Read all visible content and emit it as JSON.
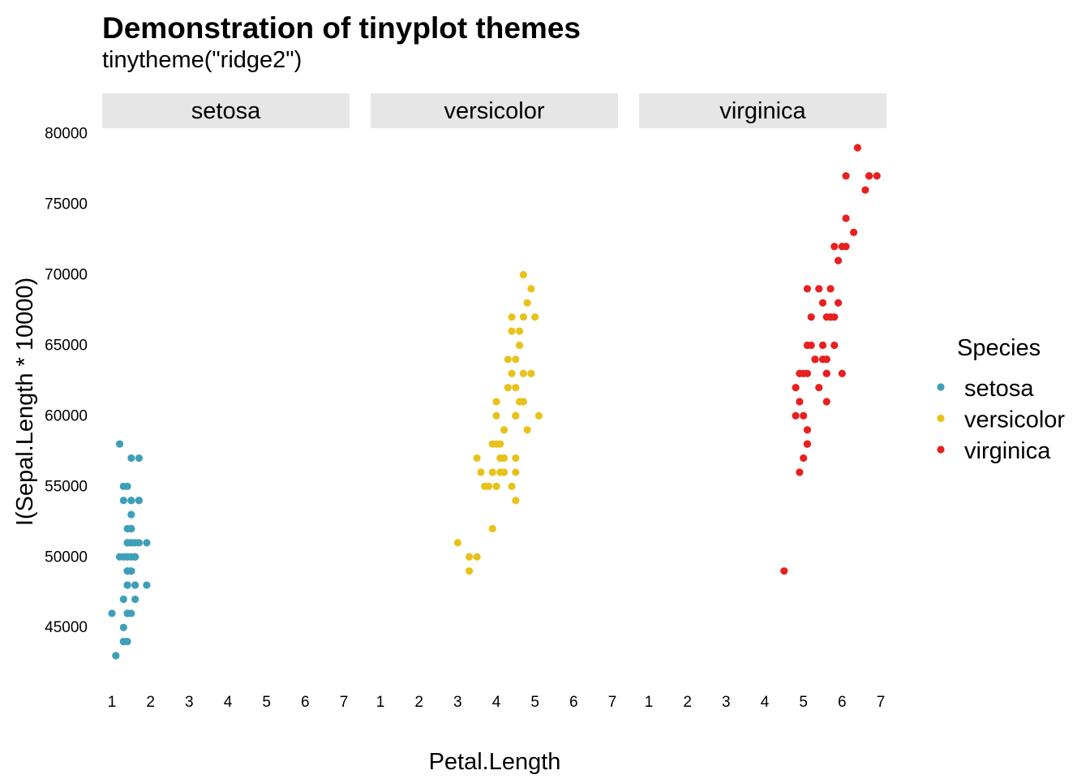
{
  "chart_data": {
    "type": "scatter",
    "title": "Demonstration of tinyplot themes",
    "subtitle": "tinytheme(\"ridge2\")",
    "xlabel": "Petal.Length",
    "ylabel": "I(Sepal.Length * 10000)",
    "facet_by": "Species",
    "facets": [
      "setosa",
      "versicolor",
      "virginica"
    ],
    "xlim": [
      1,
      7
    ],
    "ylim": [
      43000,
      79000
    ],
    "x_ticks": [
      1,
      2,
      3,
      4,
      5,
      6,
      7
    ],
    "y_ticks": [
      45000,
      50000,
      55000,
      60000,
      65000,
      70000,
      75000,
      80000
    ],
    "grid": false,
    "legend": {
      "title": "Species",
      "position": "right",
      "entries": [
        "setosa",
        "versicolor",
        "virginica"
      ]
    },
    "colors": {
      "setosa": "#3e9fb8",
      "versicolor": "#e8c21b",
      "virginica": "#e8201f",
      "strip_background": "#e6e6e6"
    },
    "series": [
      {
        "name": "setosa",
        "points": [
          [
            1.4,
            51000
          ],
          [
            1.4,
            49000
          ],
          [
            1.3,
            47000
          ],
          [
            1.5,
            46000
          ],
          [
            1.4,
            50000
          ],
          [
            1.7,
            54000
          ],
          [
            1.4,
            46000
          ],
          [
            1.5,
            50000
          ],
          [
            1.4,
            44000
          ],
          [
            1.5,
            49000
          ],
          [
            1.5,
            54000
          ],
          [
            1.6,
            48000
          ],
          [
            1.4,
            48000
          ],
          [
            1.1,
            43000
          ],
          [
            1.2,
            58000
          ],
          [
            1.5,
            57000
          ],
          [
            1.3,
            54000
          ],
          [
            1.4,
            51000
          ],
          [
            1.7,
            57000
          ],
          [
            1.5,
            51000
          ],
          [
            1.7,
            54000
          ],
          [
            1.5,
            51000
          ],
          [
            1.0,
            46000
          ],
          [
            1.7,
            51000
          ],
          [
            1.9,
            48000
          ],
          [
            1.6,
            50000
          ],
          [
            1.6,
            50000
          ],
          [
            1.5,
            52000
          ],
          [
            1.4,
            52000
          ],
          [
            1.6,
            47000
          ],
          [
            1.6,
            48000
          ],
          [
            1.5,
            54000
          ],
          [
            1.5,
            52000
          ],
          [
            1.4,
            55000
          ],
          [
            1.5,
            49000
          ],
          [
            1.2,
            50000
          ],
          [
            1.3,
            55000
          ],
          [
            1.4,
            49000
          ],
          [
            1.3,
            44000
          ],
          [
            1.5,
            51000
          ],
          [
            1.3,
            50000
          ],
          [
            1.3,
            45000
          ],
          [
            1.3,
            44000
          ],
          [
            1.6,
            50000
          ],
          [
            1.9,
            51000
          ],
          [
            1.4,
            48000
          ],
          [
            1.6,
            51000
          ],
          [
            1.4,
            46000
          ],
          [
            1.5,
            53000
          ],
          [
            1.4,
            50000
          ]
        ]
      },
      {
        "name": "versicolor",
        "points": [
          [
            4.7,
            70000
          ],
          [
            4.5,
            64000
          ],
          [
            4.9,
            69000
          ],
          [
            4.0,
            55000
          ],
          [
            4.6,
            65000
          ],
          [
            4.5,
            57000
          ],
          [
            4.7,
            63000
          ],
          [
            3.3,
            49000
          ],
          [
            4.6,
            66000
          ],
          [
            3.9,
            52000
          ],
          [
            3.5,
            50000
          ],
          [
            4.2,
            59000
          ],
          [
            4.0,
            60000
          ],
          [
            4.7,
            61000
          ],
          [
            3.6,
            56000
          ],
          [
            4.4,
            67000
          ],
          [
            4.5,
            56000
          ],
          [
            4.1,
            58000
          ],
          [
            4.5,
            62000
          ],
          [
            3.9,
            56000
          ],
          [
            4.8,
            59000
          ],
          [
            4.0,
            61000
          ],
          [
            4.9,
            63000
          ],
          [
            4.7,
            61000
          ],
          [
            4.3,
            64000
          ],
          [
            4.4,
            66000
          ],
          [
            4.8,
            68000
          ],
          [
            5.0,
            67000
          ],
          [
            4.5,
            60000
          ],
          [
            3.5,
            57000
          ],
          [
            3.8,
            55000
          ],
          [
            3.7,
            55000
          ],
          [
            3.9,
            58000
          ],
          [
            5.1,
            60000
          ],
          [
            4.5,
            54000
          ],
          [
            4.5,
            60000
          ],
          [
            4.7,
            67000
          ],
          [
            4.4,
            63000
          ],
          [
            4.1,
            56000
          ],
          [
            4.0,
            55000
          ],
          [
            4.4,
            55000
          ],
          [
            4.6,
            61000
          ],
          [
            4.0,
            58000
          ],
          [
            3.3,
            50000
          ],
          [
            4.2,
            56000
          ],
          [
            4.2,
            57000
          ],
          [
            4.2,
            57000
          ],
          [
            4.3,
            62000
          ],
          [
            3.0,
            51000
          ],
          [
            4.1,
            57000
          ]
        ]
      },
      {
        "name": "virginica",
        "points": [
          [
            6.0,
            63000
          ],
          [
            5.1,
            58000
          ],
          [
            5.9,
            71000
          ],
          [
            5.6,
            63000
          ],
          [
            5.8,
            65000
          ],
          [
            6.6,
            76000
          ],
          [
            4.5,
            49000
          ],
          [
            6.3,
            73000
          ],
          [
            5.8,
            67000
          ],
          [
            6.1,
            72000
          ],
          [
            5.1,
            65000
          ],
          [
            5.3,
            64000
          ],
          [
            5.5,
            68000
          ],
          [
            5.0,
            57000
          ],
          [
            5.1,
            58000
          ],
          [
            5.3,
            64000
          ],
          [
            5.5,
            65000
          ],
          [
            6.7,
            77000
          ],
          [
            6.9,
            77000
          ],
          [
            5.0,
            60000
          ],
          [
            5.7,
            69000
          ],
          [
            4.9,
            56000
          ],
          [
            6.7,
            77000
          ],
          [
            4.9,
            63000
          ],
          [
            5.7,
            67000
          ],
          [
            6.0,
            72000
          ],
          [
            4.8,
            62000
          ],
          [
            4.9,
            61000
          ],
          [
            5.6,
            64000
          ],
          [
            5.8,
            72000
          ],
          [
            6.1,
            74000
          ],
          [
            6.4,
            79000
          ],
          [
            5.6,
            64000
          ],
          [
            5.1,
            63000
          ],
          [
            5.6,
            61000
          ],
          [
            6.1,
            77000
          ],
          [
            5.6,
            63000
          ],
          [
            5.5,
            64000
          ],
          [
            4.8,
            60000
          ],
          [
            5.4,
            69000
          ],
          [
            5.6,
            67000
          ],
          [
            5.1,
            69000
          ],
          [
            5.1,
            58000
          ],
          [
            5.9,
            68000
          ],
          [
            5.7,
            67000
          ],
          [
            5.2,
            67000
          ],
          [
            5.0,
            63000
          ],
          [
            5.2,
            65000
          ],
          [
            5.4,
            62000
          ],
          [
            5.1,
            59000
          ]
        ]
      }
    ]
  }
}
